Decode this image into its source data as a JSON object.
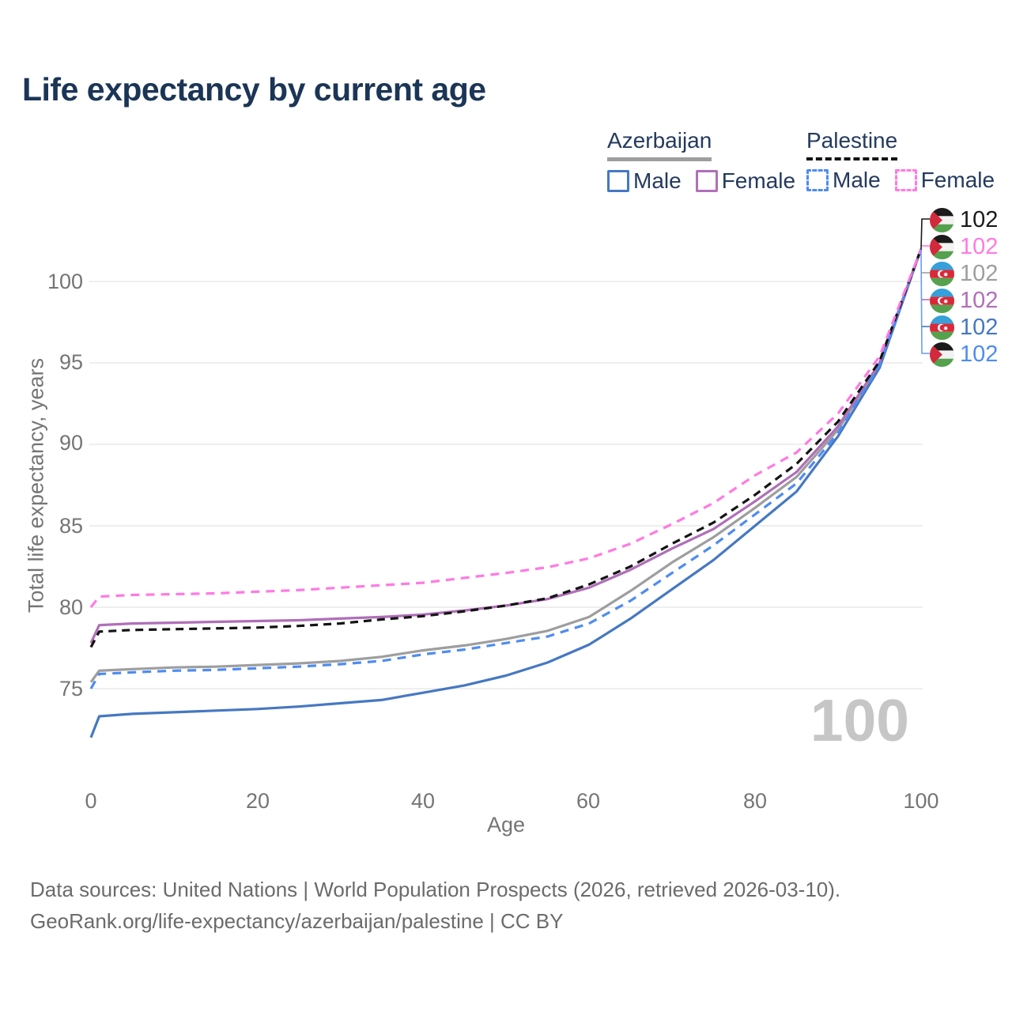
{
  "header": {
    "title": "Life expectancy by current age"
  },
  "legend": {
    "groups": [
      {
        "label": "Azerbaijan",
        "line_style": "solid",
        "underline_color": "#9e9e9e",
        "items": [
          {
            "label": "Male",
            "color": "#4678c2"
          },
          {
            "label": "Female",
            "color": "#b06fb8"
          }
        ]
      },
      {
        "label": "Palestine",
        "line_style": "dashed",
        "underline_color": "#141414",
        "items": [
          {
            "label": "Male",
            "color": "#4e8cf0"
          },
          {
            "label": "Female",
            "color": "#ff7ae1"
          }
        ]
      }
    ]
  },
  "chart_data": {
    "type": "line",
    "title": "Life expectancy by current age",
    "xlabel": "Age",
    "ylabel": "Total life expectancy, years",
    "xlim": [
      0,
      100
    ],
    "ylim": [
      71.5,
      102.5
    ],
    "grid": "horizontal",
    "legend_position": "top-right",
    "x_ticks": [
      0,
      20,
      40,
      60,
      80,
      100
    ],
    "y_ticks_top_down": [
      100,
      95,
      90,
      85,
      80,
      75
    ],
    "x": [
      0,
      1,
      5,
      10,
      15,
      20,
      25,
      30,
      35,
      40,
      45,
      50,
      55,
      60,
      65,
      70,
      75,
      80,
      85,
      90,
      95,
      100
    ],
    "series": [
      {
        "name": "Azerbaijan Total",
        "country": "Azerbaijan",
        "sex": "total",
        "color": "#9e9e9e",
        "dash": null,
        "values": [
          75.4,
          76.1,
          76.2,
          76.3,
          76.35,
          76.45,
          76.55,
          76.7,
          76.95,
          77.35,
          77.65,
          78.05,
          78.55,
          79.4,
          81.0,
          82.75,
          84.3,
          86.1,
          88.0,
          90.9,
          94.9,
          102
        ]
      },
      {
        "name": "Azerbaijan Male",
        "country": "Azerbaijan",
        "sex": "male",
        "color": "#4678c2",
        "dash": null,
        "values": [
          72.0,
          73.3,
          73.45,
          73.55,
          73.65,
          73.75,
          73.9,
          74.1,
          74.3,
          74.75,
          75.2,
          75.8,
          76.6,
          77.7,
          79.3,
          81.1,
          82.9,
          85.0,
          87.1,
          90.5,
          94.7,
          102
        ]
      },
      {
        "name": "Azerbaijan Female",
        "country": "Azerbaijan",
        "sex": "female",
        "color": "#b06fb8",
        "dash": null,
        "values": [
          77.8,
          78.9,
          79.0,
          79.05,
          79.1,
          79.15,
          79.2,
          79.3,
          79.4,
          79.55,
          79.8,
          80.1,
          80.5,
          81.2,
          82.3,
          83.6,
          84.8,
          86.5,
          88.3,
          91.1,
          95.0,
          102
        ]
      },
      {
        "name": "Palestine Male",
        "country": "Palestine",
        "sex": "male",
        "color": "#4e8cf0",
        "dash": "11 8",
        "values": [
          75.0,
          75.9,
          76.0,
          76.1,
          76.15,
          76.25,
          76.35,
          76.5,
          76.7,
          77.1,
          77.4,
          77.8,
          78.2,
          79.0,
          80.4,
          82.1,
          83.8,
          85.7,
          87.6,
          90.7,
          94.85,
          102
        ]
      },
      {
        "name": "Palestine Total",
        "country": "Palestine",
        "sex": "total",
        "color": "#141414",
        "dash": "10 7",
        "values": [
          77.55,
          78.5,
          78.6,
          78.65,
          78.7,
          78.75,
          78.85,
          79.0,
          79.25,
          79.45,
          79.75,
          80.1,
          80.55,
          81.4,
          82.5,
          83.9,
          85.2,
          86.9,
          88.8,
          91.4,
          95.1,
          102
        ]
      },
      {
        "name": "Palestine Female",
        "country": "Palestine",
        "sex": "female",
        "color": "#ff7ae1",
        "dash": "11 8",
        "values": [
          80.0,
          80.65,
          80.75,
          80.8,
          80.85,
          80.95,
          81.05,
          81.2,
          81.35,
          81.5,
          81.8,
          82.1,
          82.45,
          83.0,
          83.9,
          85.1,
          86.4,
          88.1,
          89.5,
          91.9,
          95.4,
          102
        ]
      }
    ]
  },
  "end_labels": [
    {
      "flag": "palestine",
      "series": "Palestine Total",
      "value": "102",
      "color": "#1a1a1a"
    },
    {
      "flag": "palestine",
      "series": "Palestine Female",
      "value": "102",
      "color": "#ff7ae1"
    },
    {
      "flag": "azerbaijan",
      "series": "Azerbaijan Total",
      "value": "102",
      "color": "#9e9e9e"
    },
    {
      "flag": "azerbaijan",
      "series": "Azerbaijan Female",
      "value": "102",
      "color": "#b06fb8"
    },
    {
      "flag": "azerbaijan",
      "series": "Azerbaijan Male",
      "value": "102",
      "color": "#4678c2"
    },
    {
      "flag": "palestine",
      "series": "Palestine Male",
      "value": "102",
      "color": "#4e8cf0"
    }
  ],
  "watermark": {
    "text": "100"
  },
  "footer": {
    "line1": "Data sources: United Nations | World Population Prospects (2026, retrieved 2026-03-10).",
    "line2": "GeoRank.org/life-expectancy/azerbaijan/palestine | CC BY"
  }
}
